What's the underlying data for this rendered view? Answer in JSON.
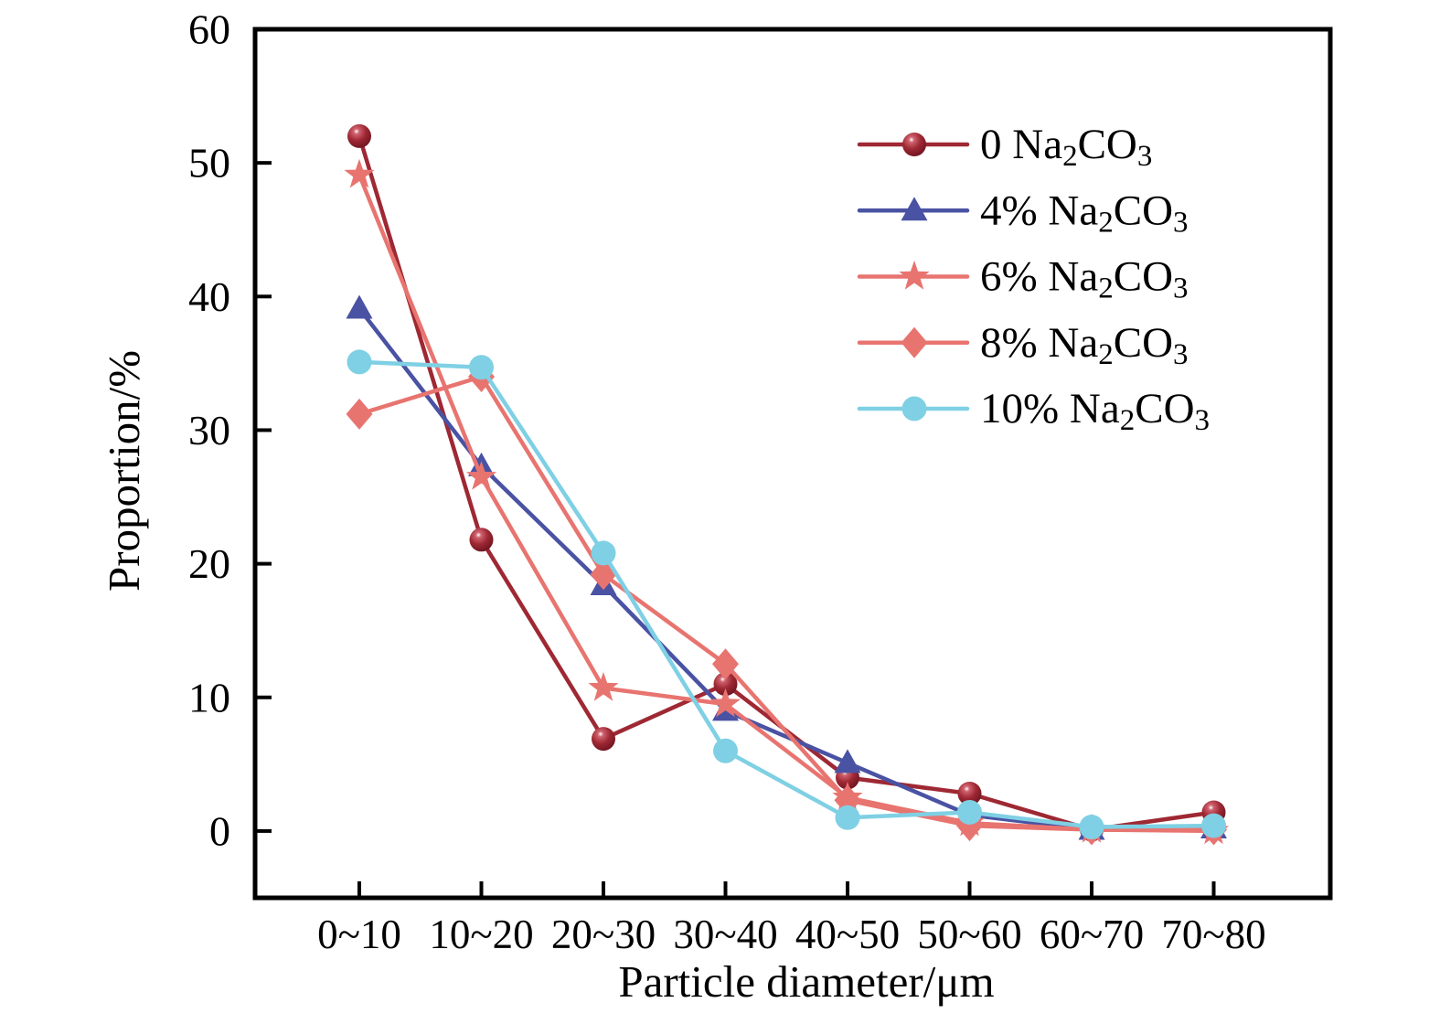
{
  "figure": {
    "background_color": "#ffffff",
    "axis_color": "#000000"
  },
  "chart_data": {
    "type": "line",
    "title": "",
    "xlabel": "Particle diameter/μm",
    "ylabel": "Proportion/%",
    "categories": [
      "0~10",
      "10~20",
      "20~30",
      "30~40",
      "40~50",
      "50~60",
      "60~70",
      "70~80"
    ],
    "ylim": [
      -5,
      60
    ],
    "yticks": [
      0,
      10,
      20,
      30,
      40,
      50,
      60
    ],
    "grid": false,
    "legend_position": "top-right",
    "tick_direction": "in",
    "series": [
      {
        "name": "0 Na₂CO₃",
        "marker": "sphere-circle",
        "color": "#9e2833",
        "marker_edge_color": "#701522",
        "values": [
          52.0,
          21.8,
          6.9,
          11.0,
          4.0,
          2.8,
          0.1,
          1.4
        ]
      },
      {
        "name": "4% Na₂CO₃",
        "marker": "triangle",
        "color": "#4a52a3",
        "values": [
          39.1,
          27.3,
          18.4,
          9.0,
          5.1,
          1.2,
          0.1,
          0.2
        ]
      },
      {
        "name": "6% Na₂CO₃",
        "marker": "star",
        "color": "#e87470",
        "values": [
          49.1,
          26.5,
          10.7,
          9.5,
          2.5,
          0.6,
          0.1,
          0.0
        ]
      },
      {
        "name": "8% Na₂CO₃",
        "marker": "diamond",
        "color": "#e87470",
        "values": [
          31.2,
          34.0,
          19.2,
          12.5,
          2.3,
          0.4,
          0.1,
          0.1
        ]
      },
      {
        "name": "10% Na₂CO₃",
        "marker": "circle",
        "color": "#7fd0e4",
        "values": [
          35.1,
          34.7,
          20.8,
          6.0,
          1.0,
          1.4,
          0.3,
          0.4
        ]
      }
    ]
  }
}
